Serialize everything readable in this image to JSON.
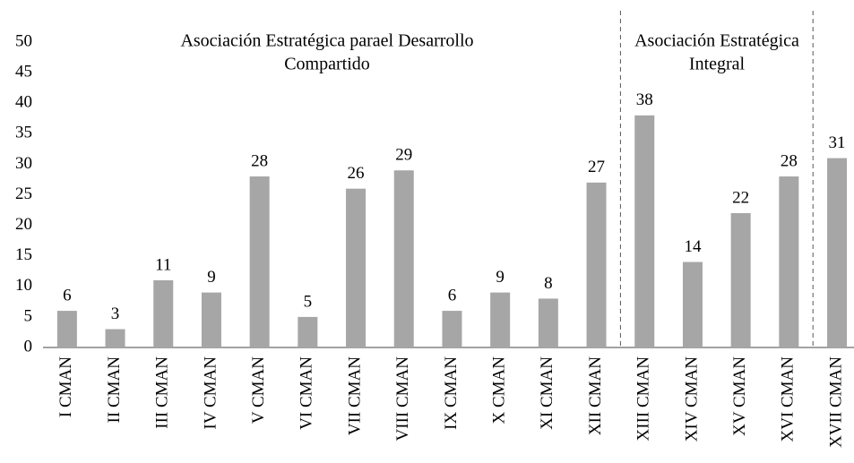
{
  "chart_data": {
    "type": "bar",
    "categories": [
      "I CMAN",
      "II CMAN",
      "III CMAN",
      "IV CMAN",
      "V CMAN",
      "VI CMAN",
      "VII CMAN",
      "VIII CMAN",
      "IX CMAN",
      "X CMAN",
      "XI CMAN",
      "XII CMAN",
      "XIII CMAN",
      "XIV CMAN",
      "XV CMAN",
      "XVI CMAN",
      "XVII CMAN"
    ],
    "values": [
      6,
      3,
      11,
      9,
      28,
      5,
      26,
      29,
      6,
      9,
      8,
      27,
      38,
      14,
      22,
      28,
      31
    ],
    "color": "#a6a6a6",
    "ylim": [
      0,
      50
    ],
    "yticks": [
      0,
      5,
      10,
      15,
      20,
      25,
      30,
      35,
      40,
      45,
      50
    ],
    "grid": false,
    "annotations": [
      {
        "lines": [
          "Asociación Estratégica parael Desarrollo",
          "Compartido"
        ]
      },
      {
        "lines": [
          "Asociación Estratégica",
          "Integral"
        ]
      }
    ]
  }
}
